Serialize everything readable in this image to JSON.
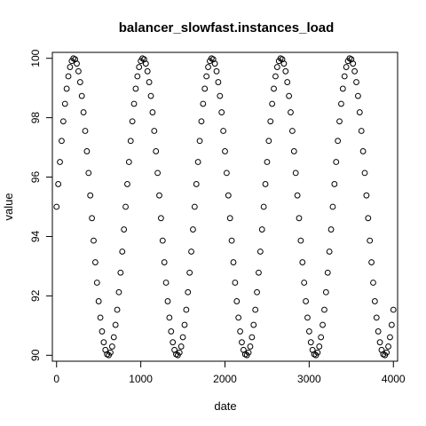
{
  "chart_data": {
    "type": "scatter",
    "title": "balancer_slowfast.instances_load",
    "xlabel": "date",
    "ylabel": "value",
    "xlim": [
      -50,
      4050
    ],
    "ylim": [
      89.8,
      100.2
    ],
    "x_ticks": [
      0,
      1000,
      2000,
      3000,
      4000
    ],
    "x_tick_labels": [
      "0",
      "1000",
      "2000",
      "3000",
      "4000"
    ],
    "y_ticks": [
      90,
      92,
      94,
      96,
      98,
      100
    ],
    "y_tick_labels": [
      "90",
      "92",
      "94",
      "96",
      "98",
      "100"
    ],
    "grid": false,
    "legend": "none",
    "point_color": "#000000",
    "series": [
      {
        "x_start": 0,
        "x_end": 4000,
        "x_step": 20,
        "pattern": "sinusoid",
        "center": 95,
        "amplitude": 5,
        "period": 41
      }
    ]
  }
}
